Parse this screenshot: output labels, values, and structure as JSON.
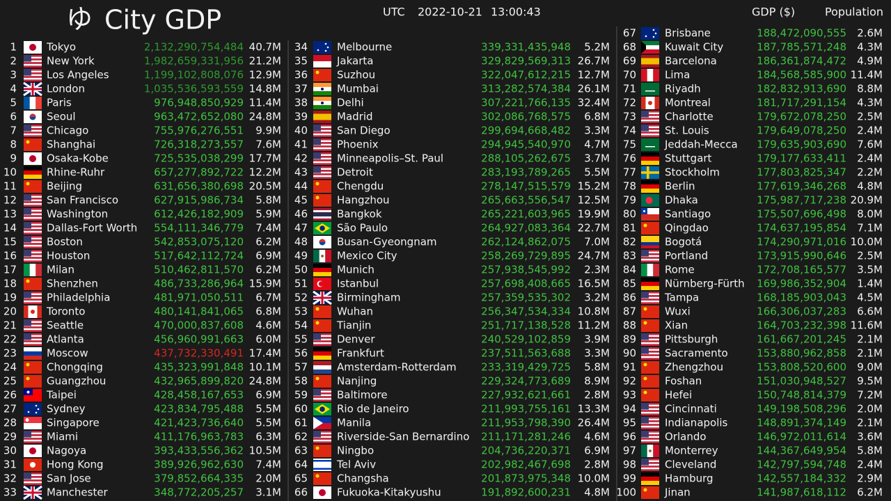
{
  "header": {
    "logo": "ゆ",
    "title": "City GDP",
    "timezone": "UTC",
    "date": "2022-10-21",
    "time": "13:00:43",
    "gdp_label": "GDP ($)",
    "population_label": "Population"
  },
  "table": {
    "rows": [
      [
        1,
        "Tokyo",
        "2,132,290,754,484",
        "40.7M"
      ],
      [
        2,
        "New York",
        "1,982,659,331,956",
        "21.2M"
      ],
      [
        3,
        "Los Angeles",
        "1,199,102,808,076",
        "12.9M"
      ],
      [
        4,
        "London",
        "1,035,536,593,559",
        "14.8M"
      ],
      [
        5,
        "Paris",
        "976,948,850,929",
        "11.4M"
      ],
      [
        6,
        "Seoul",
        "963,472,652,080",
        "24.8M"
      ],
      [
        7,
        "Chicago",
        "755,976,276,551",
        "9.9M"
      ],
      [
        8,
        "Shanghai",
        "726,318,273,557",
        "7.6M"
      ],
      [
        9,
        "Osaka-Kobe",
        "725,535,038,299",
        "17.7M"
      ],
      [
        10,
        "Rhine-Ruhr",
        "657,277,892,722",
        "12.2M"
      ],
      [
        11,
        "Beijing",
        "631,656,380,698",
        "20.5M"
      ],
      [
        12,
        "San Francisco",
        "627,915,986,734",
        "5.8M"
      ],
      [
        13,
        "Washington",
        "612,426,182,909",
        "5.9M"
      ],
      [
        14,
        "Dallas-Fort Worth",
        "554,111,346,779",
        "7.4M"
      ],
      [
        15,
        "Boston",
        "542,853,075,120",
        "6.2M"
      ],
      [
        16,
        "Houston",
        "517,642,112,724",
        "6.9M"
      ],
      [
        17,
        "Milan",
        "510,462,811,570",
        "6.2M"
      ],
      [
        18,
        "Shenzhen",
        "486,733,286,964",
        "15.9M"
      ],
      [
        19,
        "Philadelphia",
        "481,971,050,511",
        "6.7M"
      ],
      [
        20,
        "Toronto",
        "480,141,841,065",
        "6.8M"
      ],
      [
        21,
        "Seattle",
        "470,000,837,608",
        "4.6M"
      ],
      [
        22,
        "Atlanta",
        "456,960,991,663",
        "6.0M"
      ],
      [
        23,
        "Moscow",
        "437,732,330,491",
        "17.4M"
      ],
      [
        24,
        "Chongqing",
        "435,323,991,848",
        "10.1M"
      ],
      [
        25,
        "Guangzhou",
        "432,965,899,820",
        "24.8M"
      ],
      [
        26,
        "Taipei",
        "428,458,167,653",
        "6.9M"
      ],
      [
        27,
        "Sydney",
        "423,834,795,488",
        "5.5M"
      ],
      [
        28,
        "Singapore",
        "421,423,736,640",
        "5.5M"
      ],
      [
        29,
        "Miami",
        "411,176,963,783",
        "6.3M"
      ],
      [
        30,
        "Nagoya",
        "393,433,556,362",
        "10.5M"
      ],
      [
        31,
        "Hong Kong",
        "389,926,962,630",
        "7.4M"
      ],
      [
        32,
        "San Jose",
        "379,852,664,335",
        "2.0M"
      ],
      [
        33,
        "Manchester",
        "348,772,205,257",
        "3.1M"
      ],
      [
        34,
        "Melbourne",
        "339,331,435,948",
        "5.2M"
      ],
      [
        35,
        "Jakarta",
        "329,829,569,313",
        "26.7M"
      ],
      [
        36,
        "Suzhou",
        "322,047,612,215",
        "12.7M"
      ],
      [
        37,
        "Mumbai",
        "313,282,574,384",
        "26.1M"
      ],
      [
        38,
        "Delhi",
        "307,221,766,135",
        "32.4M"
      ],
      [
        39,
        "Madrid",
        "302,086,768,575",
        "6.8M"
      ],
      [
        40,
        "San Diego",
        "299,694,668,482",
        "3.3M"
      ],
      [
        41,
        "Phoenix",
        "294,945,540,970",
        "4.7M"
      ],
      [
        42,
        "Minneapolis–St. Paul",
        "288,105,262,675",
        "3.7M"
      ],
      [
        43,
        "Detroit",
        "283,193,789,265",
        "5.5M"
      ],
      [
        44,
        "Chengdu",
        "278,147,515,579",
        "15.2M"
      ],
      [
        45,
        "Hangzhou",
        "265,663,556,547",
        "12.5M"
      ],
      [
        46,
        "Bangkok",
        "265,221,603,965",
        "19.9M"
      ],
      [
        47,
        "São Paulo",
        "264,927,083,364",
        "22.7M"
      ],
      [
        48,
        "Busan-Gyeongnam",
        "262,124,862,075",
        "7.0M"
      ],
      [
        49,
        "Mexico City",
        "258,269,729,895",
        "24.7M"
      ],
      [
        50,
        "Munich",
        "257,938,545,992",
        "2.3M"
      ],
      [
        51,
        "Istanbul",
        "257,698,408,665",
        "16.5M"
      ],
      [
        52,
        "Birmingham",
        "257,359,535,302",
        "3.2M"
      ],
      [
        53,
        "Wuhan",
        "256,347,534,334",
        "10.8M"
      ],
      [
        54,
        "Tianjin",
        "251,717,138,528",
        "11.2M"
      ],
      [
        55,
        "Denver",
        "240,529,102,859",
        "3.9M"
      ],
      [
        56,
        "Frankfurt",
        "237,511,563,688",
        "3.3M"
      ],
      [
        57,
        "Amsterdam-Rotterdam",
        "233,319,429,725",
        "5.8M"
      ],
      [
        58,
        "Nanjing",
        "229,324,773,689",
        "8.9M"
      ],
      [
        59,
        "Baltimore",
        "227,932,621,661",
        "2.8M"
      ],
      [
        60,
        "Rio de Janeiro",
        "211,993,755,161",
        "13.3M"
      ],
      [
        61,
        "Manila",
        "211,953,798,390",
        "26.4M"
      ],
      [
        62,
        "Riverside-San Bernardino",
        "211,171,281,246",
        "4.6M"
      ],
      [
        63,
        "Ningbo",
        "204,736,220,371",
        "6.9M"
      ],
      [
        64,
        "Tel Aviv",
        "202,982,467,698",
        "2.8M"
      ],
      [
        65,
        "Changsha",
        "201,873,975,348",
        "10.0M"
      ],
      [
        66,
        "Fukuoka-Kitakyushu",
        "191,892,600,231",
        "4.8M"
      ],
      [
        67,
        "Brisbane",
        "188,472,090,555",
        "2.6M"
      ],
      [
        68,
        "Kuwait City",
        "187,785,571,248",
        "4.3M"
      ],
      [
        69,
        "Barcelona",
        "186,361,874,472",
        "4.9M"
      ],
      [
        70,
        "Lima",
        "184,568,585,900",
        "11.4M"
      ],
      [
        71,
        "Riyadh",
        "182,832,913,690",
        "8.8M"
      ],
      [
        72,
        "Montreal",
        "181,717,291,154",
        "4.3M"
      ],
      [
        73,
        "Charlotte",
        "179,672,078,250",
        "2.5M"
      ],
      [
        74,
        "St. Louis",
        "179,649,078,250",
        "2.4M"
      ],
      [
        75,
        "Jeddah-Mecca",
        "179,635,903,690",
        "7.6M"
      ],
      [
        76,
        "Stuttgart",
        "179,177,633,411",
        "2.4M"
      ],
      [
        77,
        "Stockholm",
        "177,803,825,347",
        "2.2M"
      ],
      [
        78,
        "Berlin",
        "177,619,346,268",
        "4.8M"
      ],
      [
        79,
        "Dhaka",
        "175,987,717,238",
        "20.9M"
      ],
      [
        80,
        "Santiago",
        "175,507,696,498",
        "8.0M"
      ],
      [
        81,
        "Qingdao",
        "174,637,195,854",
        "7.1M"
      ],
      [
        82,
        "Bogotá",
        "174,290,971,016",
        "10.0M"
      ],
      [
        83,
        "Portland",
        "173,915,990,646",
        "2.5M"
      ],
      [
        84,
        "Rome",
        "172,708,165,577",
        "3.5M"
      ],
      [
        85,
        "Nürnberg-Fürth",
        "169,986,352,904",
        "1.4M"
      ],
      [
        86,
        "Tampa",
        "168,185,903,043",
        "4.5M"
      ],
      [
        87,
        "Wuxi",
        "166,306,037,283",
        "6.6M"
      ],
      [
        88,
        "Xian",
        "164,703,232,398",
        "11.6M"
      ],
      [
        89,
        "Pittsburgh",
        "161,667,201,245",
        "2.1M"
      ],
      [
        90,
        "Sacramento",
        "153,880,962,858",
        "2.1M"
      ],
      [
        91,
        "Zhengzhou",
        "153,808,520,600",
        "9.0M"
      ],
      [
        92,
        "Foshan",
        "151,030,948,527",
        "9.5M"
      ],
      [
        93,
        "Hefei",
        "150,748,814,379",
        "7.2M"
      ],
      [
        94,
        "Cincinnati",
        "149,198,508,296",
        "2.0M"
      ],
      [
        95,
        "Indianapolis",
        "148,891,374,149",
        "2.1M"
      ],
      [
        96,
        "Orlando",
        "146,972,011,614",
        "3.6M"
      ],
      [
        97,
        "Monterrey",
        "144,367,649,954",
        "5.8M"
      ],
      [
        98,
        "Cleveland",
        "142,797,594,748",
        "2.4M"
      ],
      [
        99,
        "Hamburg",
        "142,557,184,332",
        "2.9M"
      ],
      [
        100,
        "Jinan",
        "141,987,618,112",
        "6.2M"
      ]
    ]
  }
}
